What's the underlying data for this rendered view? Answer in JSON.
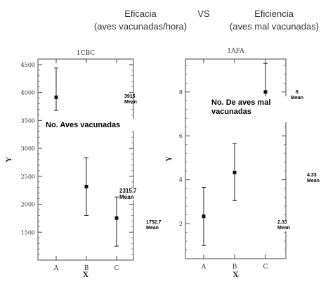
{
  "header": {
    "left_line1": "Eficacia",
    "left_line2": "(aves vacunadas/hora)",
    "vs": "VS",
    "right_line1": "Eficiencia",
    "right_line2": "(aves mal vacunadas)"
  },
  "overlays": {
    "left_box": "No. Aves vacunadas",
    "right_box_line1": "No. De aves  mal",
    "right_box_line2": "vacunadas"
  },
  "chart_data": [
    {
      "type": "scatter",
      "title": "1CBC",
      "xlabel": "X",
      "ylabel": "Y",
      "categories": [
        "A",
        "B",
        "C"
      ],
      "ylim": [
        1000,
        4600
      ],
      "yticks": [
        1500,
        2000,
        2500,
        3000,
        3500,
        4000,
        4500
      ],
      "series": [
        {
          "means": [
            3915,
            2315.7,
            1752.7
          ],
          "lower": [
            3680,
            1800,
            1250
          ],
          "upper": [
            4440,
            2830,
            2130
          ]
        }
      ],
      "annotations": [
        {
          "value": "3915",
          "label": "Mean"
        },
        {
          "value": "2315.7",
          "label": "Mean"
        },
        {
          "value": "1752.7",
          "label": "Mean"
        }
      ],
      "grid": false
    },
    {
      "type": "scatter",
      "title": "1AFA",
      "xlabel": "X",
      "ylabel": "Y",
      "categories": [
        "A",
        "B",
        "C"
      ],
      "ylim": [
        0.4,
        9.5
      ],
      "yticks": [
        2,
        4,
        6,
        8
      ],
      "series": [
        {
          "means": [
            2.33,
            4.33,
            8
          ],
          "lower": [
            1.0,
            3.05,
            6.7
          ],
          "upper": [
            3.65,
            5.65,
            9.3
          ]
        }
      ],
      "annotations": [
        {
          "value": "8",
          "label": "Mean"
        },
        {
          "value": "4.33",
          "label": "Mean"
        },
        {
          "value": "2.33",
          "label": "Mean"
        }
      ],
      "grid": false
    }
  ]
}
